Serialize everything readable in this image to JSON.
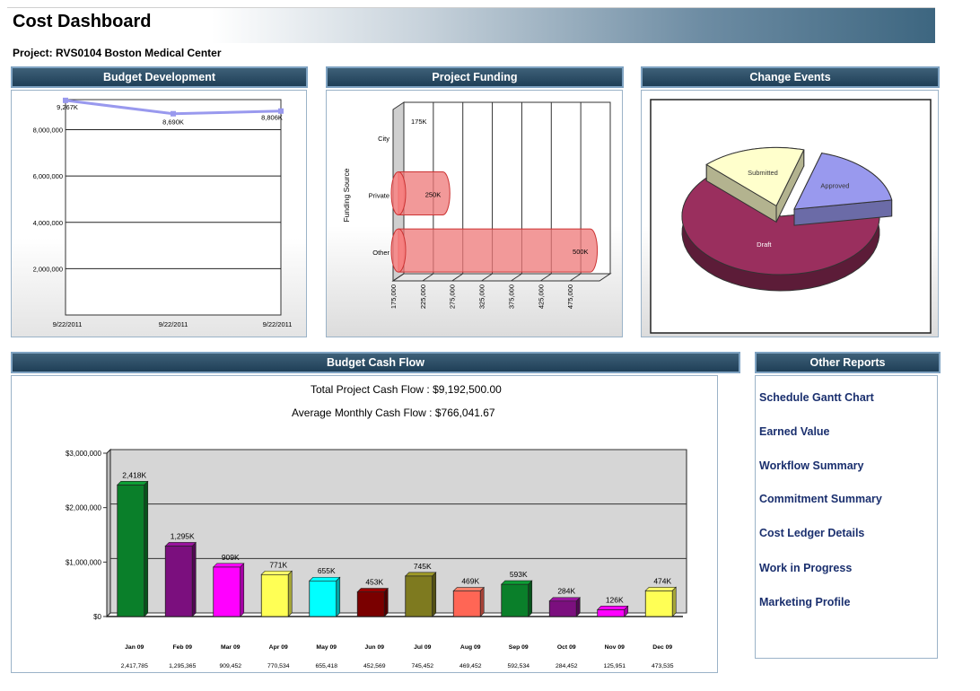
{
  "header": {
    "title": "Cost Dashboard"
  },
  "project": {
    "label": "Project: RVS0104 Boston Medical Center"
  },
  "panels": {
    "budget_development": "Budget Development",
    "project_funding": "Project Funding",
    "change_events": "Change Events",
    "budget_cash_flow": "Budget Cash Flow",
    "other_reports": "Other Reports"
  },
  "cash_flow": {
    "total_label": "Total Project Cash Flow :",
    "total_value": "$9,192,500.00",
    "average_label": "Average Monthly Cash Flow :",
    "average_value": "$766,041.67"
  },
  "other_reports": {
    "items": [
      "Schedule Gantt Chart",
      "Earned Value",
      "Workflow Summary",
      "Commitment Summary",
      "Cost Ledger Details",
      "Work in Progress",
      "Marketing Profile"
    ]
  },
  "chart_data": [
    {
      "type": "line",
      "x": [
        "9/22/2011",
        "9/22/2011",
        "9/22/2011"
      ],
      "values": [
        9267000,
        8690000,
        8806000
      ],
      "data_labels": [
        "9,267K",
        "8,690K",
        "8,806K"
      ],
      "yticks": [
        "2,000,000",
        "4,000,000",
        "6,000,000",
        "8,000,000"
      ],
      "ylim": [
        0,
        9300000
      ],
      "color": "#9999ee",
      "grid": true
    },
    {
      "type": "bar",
      "orientation": "horizontal",
      "categories": [
        "City",
        "Private",
        "Other"
      ],
      "values": [
        175000,
        250000,
        500000
      ],
      "data_labels": [
        "175K",
        "250K",
        "500K"
      ],
      "xticks": [
        "175,000",
        "225,000",
        "275,000",
        "325,000",
        "375,000",
        "425,000",
        "475,000"
      ],
      "ylabel": "Funding Source",
      "color": "#ee7777"
    },
    {
      "type": "pie",
      "labels": [
        "Draft",
        "Submitted",
        "Approved"
      ],
      "values": [
        65,
        17,
        18
      ],
      "colors": [
        "#9a2f5e",
        "#ffffcc",
        "#9999ee"
      ]
    },
    {
      "type": "bar",
      "categories": [
        "Jan 09",
        "Feb 09",
        "Mar 09",
        "Apr 09",
        "May 09",
        "Jun 09",
        "Jul 09",
        "Aug 09",
        "Sep 09",
        "Oct 09",
        "Nov 09",
        "Dec 09"
      ],
      "values": [
        2417785,
        1295365,
        909452,
        770534,
        655418,
        452569,
        745452,
        469452,
        592534,
        284452,
        125951,
        473535
      ],
      "value_labels": [
        "2,417,785",
        "1,295,365",
        "909,452",
        "770,534",
        "655,418",
        "452,569",
        "745,452",
        "469,452",
        "592,534",
        "284,452",
        "125,951",
        "473,535"
      ],
      "data_labels": [
        "2,418K",
        "1,295K",
        "909K",
        "771K",
        "655K",
        "453K",
        "745K",
        "469K",
        "593K",
        "284K",
        "126K",
        "474K"
      ],
      "yticks": [
        "$0",
        "$1,000,000",
        "$2,000,000",
        "$3,000,000"
      ],
      "ylim": [
        0,
        3000000
      ],
      "colors": [
        "#0a7f2a",
        "#7b0f7e",
        "#ff00ff",
        "#ffff55",
        "#00ffff",
        "#7a0000",
        "#7e7a1f",
        "#ff6655",
        "#0a7f2a",
        "#7b0f7e",
        "#ff00ff",
        "#ffff55"
      ]
    }
  ]
}
